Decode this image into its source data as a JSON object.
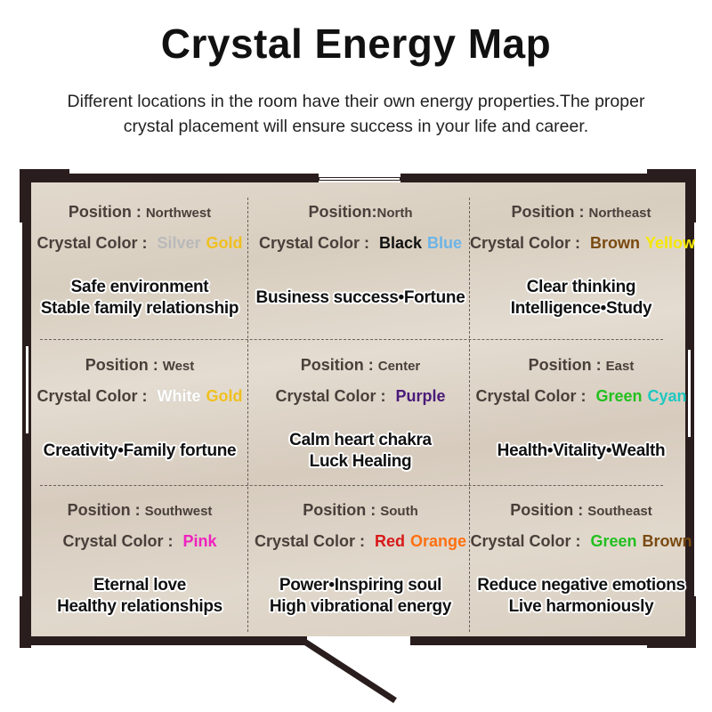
{
  "title": "Crystal Energy Map",
  "subtitle": "Different locations in the room have their own energy properties.The proper crystal placement will ensure success in your life and career.",
  "position_label": "Position : ",
  "crystal_label": "Crystal Color : ",
  "cells": [
    {
      "position": "Northwest",
      "position_label": "Position : ",
      "colors": [
        {
          "name": "Silver",
          "color": "#b9b9b9"
        },
        {
          "name": "Gold",
          "color": "#f0c020"
        }
      ],
      "lines": [
        "Safe environment",
        "Stable family relationship"
      ]
    },
    {
      "position": "North",
      "position_label": "Position:",
      "colors": [
        {
          "name": "Black",
          "color": "#111111"
        },
        {
          "name": "Blue",
          "color": "#6cb4e8"
        }
      ],
      "lines": [
        "Business success•Fortune"
      ]
    },
    {
      "position": "Northeast",
      "position_label": "Position : ",
      "colors": [
        {
          "name": "Brown",
          "color": "#7a4a10"
        },
        {
          "name": "Yellow",
          "color": "#f5e800"
        }
      ],
      "lines": [
        "Clear thinking",
        "Intelligence•Study"
      ]
    },
    {
      "position": "West",
      "position_label": "Position : ",
      "colors": [
        {
          "name": "White",
          "color": "#ffffff"
        },
        {
          "name": "Gold",
          "color": "#f0c020"
        }
      ],
      "lines": [
        "Creativity•Family fortune"
      ]
    },
    {
      "position": "Center",
      "position_label": "Position : ",
      "colors": [
        {
          "name": "Purple",
          "color": "#4a1a7a"
        }
      ],
      "lines": [
        "Calm heart chakra",
        "Luck Healing"
      ]
    },
    {
      "position": "East",
      "position_label": "Position : ",
      "colors": [
        {
          "name": "Green",
          "color": "#22c020"
        },
        {
          "name": "Cyan",
          "color": "#20c8c0"
        }
      ],
      "lines": [
        "Health•Vitality•Wealth"
      ]
    },
    {
      "position": "Southwest",
      "position_label": "Position : ",
      "colors": [
        {
          "name": "Pink",
          "color": "#f020c0"
        }
      ],
      "lines": [
        "Eternal love",
        "Healthy relationships"
      ]
    },
    {
      "position": "South",
      "position_label": "Position : ",
      "colors": [
        {
          "name": "Red",
          "color": "#d81818"
        },
        {
          "name": "Orange",
          "color": "#ff7010"
        }
      ],
      "lines": [
        "Power•Inspiring soul",
        "High vibrational energy"
      ]
    },
    {
      "position": "Southeast",
      "position_label": "Position : ",
      "colors": [
        {
          "name": "Green",
          "color": "#22c020"
        },
        {
          "name": "Brown",
          "color": "#7a4a10"
        }
      ],
      "lines": [
        "Reduce negative emotions",
        "Live harmoniously"
      ]
    }
  ]
}
